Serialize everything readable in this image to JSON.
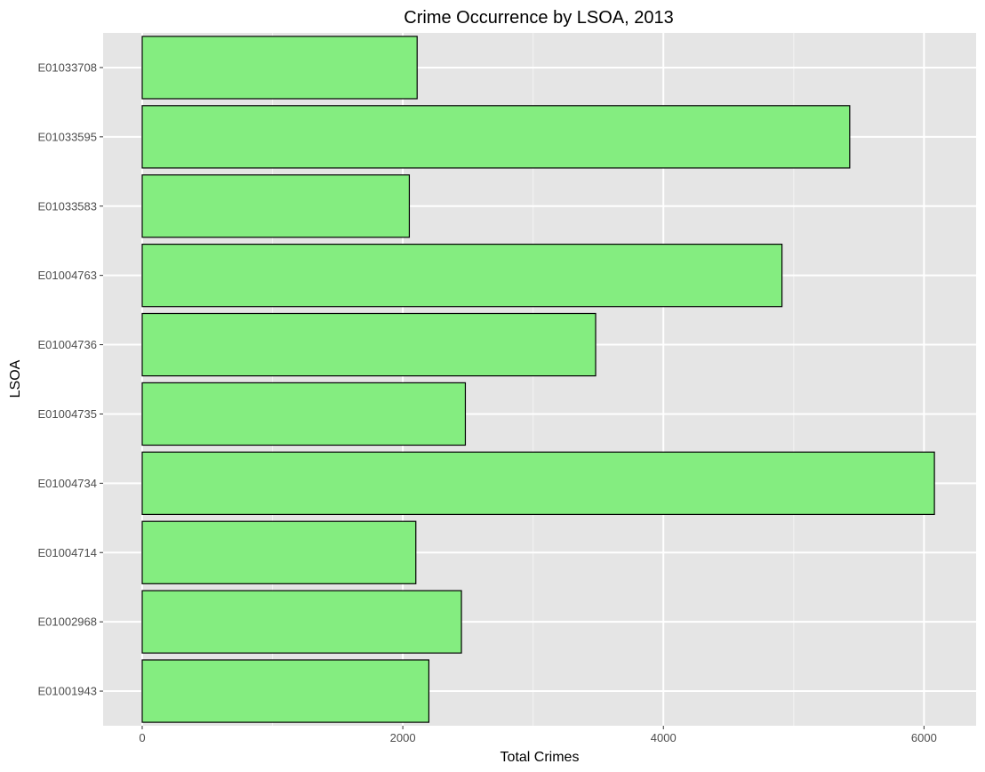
{
  "chart_data": {
    "type": "bar",
    "orientation": "horizontal",
    "title": "Crime Occurrence by LSOA, 2013",
    "xlabel": "Total Crimes",
    "ylabel": "LSOA",
    "categories": [
      "E01001943",
      "E01002968",
      "E01004714",
      "E01004734",
      "E01004735",
      "E01004736",
      "E01004763",
      "E01033583",
      "E01033595",
      "E01033708"
    ],
    "values": [
      2200,
      2450,
      2100,
      6080,
      2480,
      3480,
      4910,
      2050,
      5430,
      2110
    ],
    "xlim": [
      -300,
      6400
    ],
    "x_ticks": [
      "0",
      "2000",
      "4000",
      "6000"
    ],
    "grid": true,
    "colors": {
      "panel": "#e5e5e5",
      "grid": "#ffffff",
      "bar_fill": "#84ed80",
      "bar_stroke": "#000000"
    }
  }
}
